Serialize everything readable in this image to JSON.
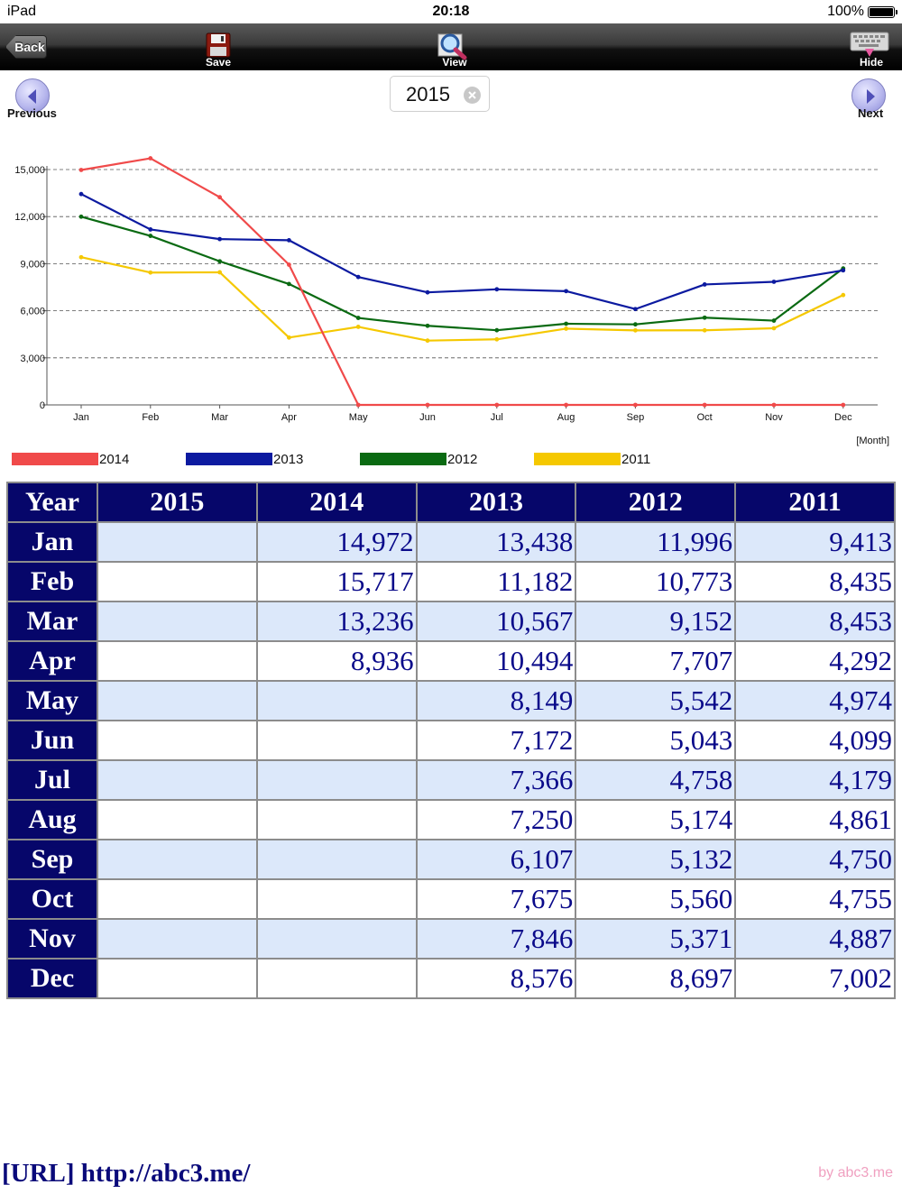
{
  "status_bar": {
    "device": "iPad",
    "time": "20:18",
    "battery": "100%"
  },
  "toolbar": {
    "back": "Back",
    "save": "Save",
    "view": "View",
    "hide": "Hide"
  },
  "navigation": {
    "previous": "Previous",
    "next": "Next",
    "year": "2015"
  },
  "chart_data": {
    "type": "line",
    "categories": [
      "Jan",
      "Feb",
      "Mar",
      "Apr",
      "May",
      "Jun",
      "Jul",
      "Aug",
      "Sep",
      "Oct",
      "Nov",
      "Dec"
    ],
    "ylim": [
      0,
      15000
    ],
    "yticks": [
      "0",
      "3,000",
      "6,000",
      "9,000",
      "12,000",
      "15,000"
    ],
    "ytick_values": [
      0,
      3000,
      6000,
      9000,
      12000,
      15000
    ],
    "xlabel": "[Month]",
    "grid": "horizontal dashed",
    "series": [
      {
        "name": "2014",
        "color": "#f04a4a",
        "values": [
          14972,
          15717,
          13236,
          8936,
          0,
          0,
          0,
          0,
          0,
          0,
          0,
          0
        ]
      },
      {
        "name": "2013",
        "color": "#0c1aa0",
        "values": [
          13438,
          11182,
          10567,
          10494,
          8149,
          7172,
          7366,
          7250,
          6107,
          7675,
          7846,
          8576
        ]
      },
      {
        "name": "2012",
        "color": "#0a6a12",
        "values": [
          11996,
          10773,
          9152,
          7707,
          5542,
          5043,
          4758,
          5174,
          5132,
          5560,
          5371,
          8697
        ]
      },
      {
        "name": "2011",
        "color": "#f5c800",
        "values": [
          9413,
          8435,
          8453,
          4292,
          4974,
          4099,
          4179,
          4861,
          4750,
          4755,
          4887,
          7002
        ]
      }
    ]
  },
  "table": {
    "headers": [
      "Year",
      "2015",
      "2014",
      "2013",
      "2012",
      "2011"
    ],
    "rows": [
      [
        "Jan",
        "",
        "14,972",
        "13,438",
        "11,996",
        "9,413"
      ],
      [
        "Feb",
        "",
        "15,717",
        "11,182",
        "10,773",
        "8,435"
      ],
      [
        "Mar",
        "",
        "13,236",
        "10,567",
        "9,152",
        "8,453"
      ],
      [
        "Apr",
        "",
        "8,936",
        "10,494",
        "7,707",
        "4,292"
      ],
      [
        "May",
        "",
        "",
        "8,149",
        "5,542",
        "4,974"
      ],
      [
        "Jun",
        "",
        "",
        "7,172",
        "5,043",
        "4,099"
      ],
      [
        "Jul",
        "",
        "",
        "7,366",
        "4,758",
        "4,179"
      ],
      [
        "Aug",
        "",
        "",
        "7,250",
        "5,174",
        "4,861"
      ],
      [
        "Sep",
        "",
        "",
        "6,107",
        "5,132",
        "4,750"
      ],
      [
        "Oct",
        "",
        "",
        "7,675",
        "5,560",
        "4,755"
      ],
      [
        "Nov",
        "",
        "",
        "7,846",
        "5,371",
        "4,887"
      ],
      [
        "Dec",
        "",
        "",
        "8,576",
        "8,697",
        "7,002"
      ]
    ]
  },
  "footer": {
    "url": "[URL] http://abc3.me/",
    "credit": "by abc3.me"
  }
}
